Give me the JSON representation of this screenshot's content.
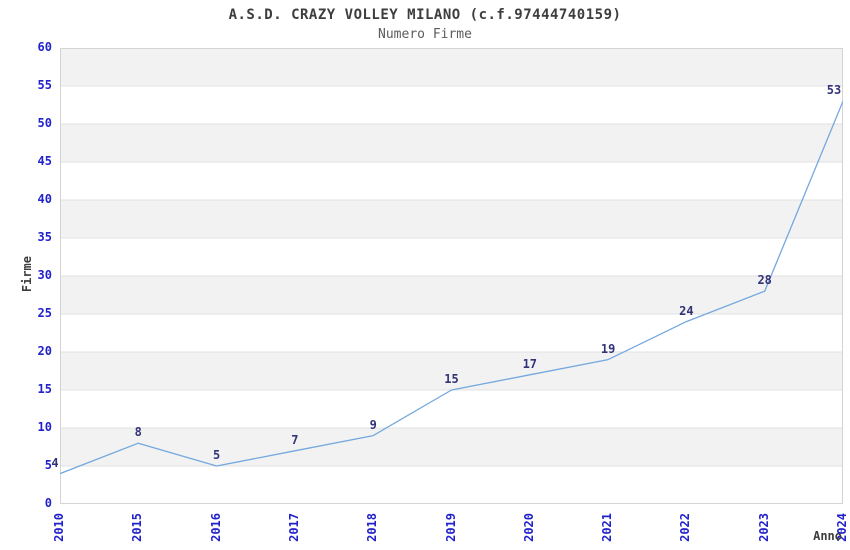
{
  "chart_data": {
    "type": "line",
    "title": "A.S.D. CRAZY VOLLEY MILANO (c.f.97444740159)",
    "subtitle": "Numero Firme",
    "xlabel": "Anno",
    "ylabel": "Firme",
    "categories": [
      "2010",
      "2015",
      "2016",
      "2017",
      "2018",
      "2019",
      "2020",
      "2021",
      "2022",
      "2023",
      "2024"
    ],
    "values": [
      4,
      8,
      5,
      7,
      9,
      15,
      17,
      19,
      24,
      28,
      53
    ],
    "point_labels": [
      "4",
      "8",
      "5",
      "7",
      "9",
      "15",
      "17",
      "19",
      "24",
      "28",
      "53"
    ],
    "ylim": [
      0,
      60
    ],
    "ytick_step": 5,
    "ytick_labels": [
      "0",
      "5",
      "10",
      "15",
      "20",
      "25",
      "30",
      "35",
      "40",
      "45",
      "50",
      "55",
      "60"
    ],
    "grid": "horizontal-bands",
    "legend_position": "none"
  },
  "style": {
    "line_color": "#74a8de",
    "band_color": "#f2f2f2",
    "grid_color": "#e1e1e1",
    "border_color": "#d4d4d4",
    "tick_label_color": "#2222cc",
    "data_label_color": "#333377",
    "title_color": "#3d3d3d",
    "subtitle_color": "#5c5c5c",
    "axis_title_color": "#3d3d3d",
    "background_color": "#ffffff"
  }
}
